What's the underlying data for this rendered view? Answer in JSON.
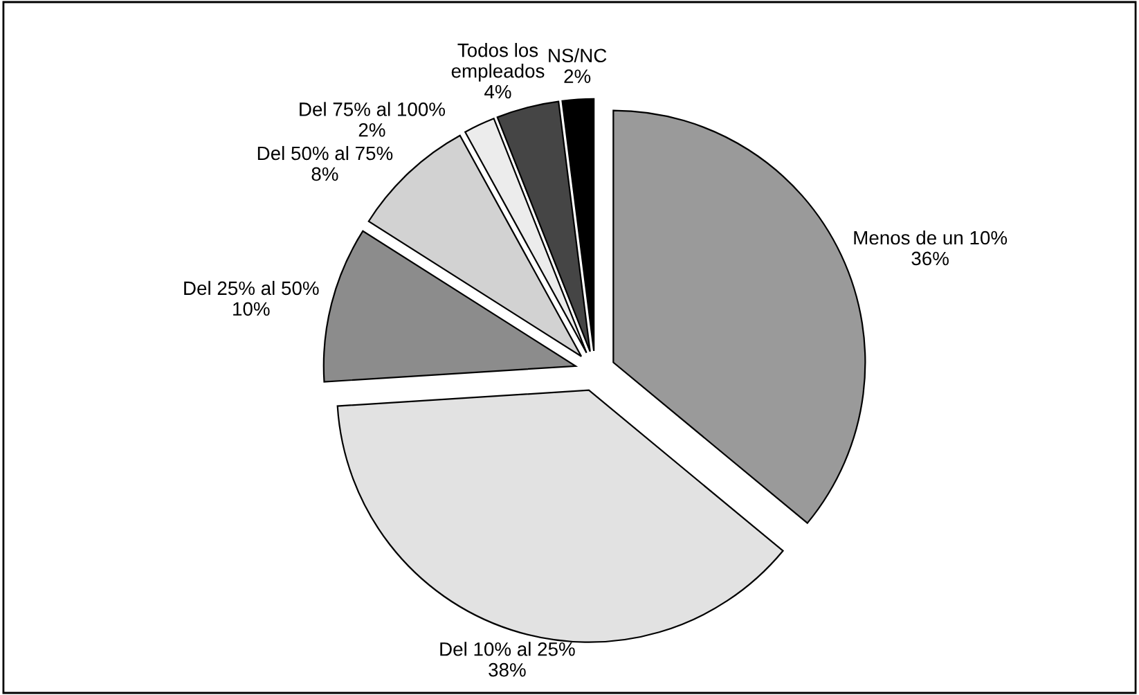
{
  "chart_data": {
    "type": "pie",
    "categories": [
      "Menos de un 10%",
      "Del 10% al 25%",
      "Del 25% al 50%",
      "Del 50% al 75%",
      "Del 75% al 100%",
      "Todos los\nempleados",
      "NS/NC"
    ],
    "values": [
      36,
      38,
      10,
      8,
      2,
      4,
      2
    ],
    "value_labels": [
      "36%",
      "38%",
      "10%",
      "8%",
      "2%",
      "4%",
      "2%"
    ],
    "colors": [
      "#9a9a9a",
      "#e2e2e2",
      "#8c8c8c",
      "#d2d2d2",
      "#ececec",
      "#454545",
      "#000000"
    ],
    "legend": false
  }
}
